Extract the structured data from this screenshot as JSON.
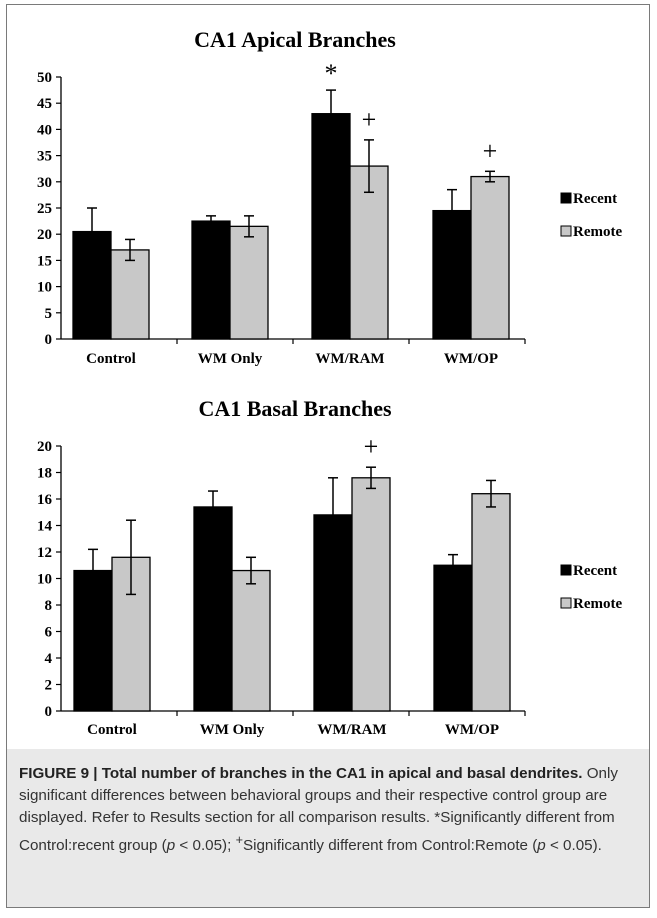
{
  "caption": {
    "title": "FIGURE 9 | Total number of branches in the CA1 in apical and basal dendrites.",
    "body_1": " Only significant differences between behavioral groups and their respective control group are displayed. Refer to Results section for all comparison results. *Significantly different from Control:recent group (",
    "p": "p",
    "body_2": " < 0.05); ",
    "plus": "+",
    "body_3": "Significantly different from Control:Remote (",
    "body_4": " < 0.05)."
  },
  "colors": {
    "recent": "#000000",
    "remote": "#c8c8c8",
    "axis": "#000000"
  },
  "chart_data": [
    {
      "type": "bar",
      "title": "CA1 Apical Branches",
      "categories": [
        "Control",
        "WM Only",
        "WM/RAM",
        "WM/OP"
      ],
      "series": [
        {
          "name": "Recent",
          "values": [
            20.5,
            22.5,
            43,
            24.5
          ],
          "errors": [
            4.5,
            1,
            4.5,
            4
          ]
        },
        {
          "name": "Remote",
          "values": [
            17,
            21.5,
            33,
            31
          ],
          "errors": [
            2,
            2,
            5,
            1
          ]
        }
      ],
      "ylim": [
        0,
        50
      ],
      "yticks": [
        "0",
        "5",
        "10",
        "15",
        "20",
        "25",
        "30",
        "35",
        "40",
        "45",
        "50"
      ],
      "annotations": [
        {
          "text": "*",
          "category": "WM/RAM",
          "series": "Recent"
        },
        {
          "text": "+",
          "category": "WM/RAM",
          "series": "Remote"
        },
        {
          "text": "+",
          "category": "WM/OP",
          "series": "Remote"
        }
      ],
      "legend": "right",
      "grid": false
    },
    {
      "type": "bar",
      "title": "CA1 Basal Branches",
      "categories": [
        "Control",
        "WM Only",
        "WM/RAM",
        "WM/OP"
      ],
      "series": [
        {
          "name": "Recent",
          "values": [
            10.6,
            15.4,
            14.8,
            11
          ],
          "errors": [
            1.6,
            1.2,
            2.8,
            0.8
          ]
        },
        {
          "name": "Remote",
          "values": [
            11.6,
            10.6,
            17.6,
            16.4
          ],
          "errors": [
            2.8,
            1,
            0.8,
            1
          ]
        }
      ],
      "ylim": [
        0,
        20
      ],
      "yticks": [
        "0",
        "2",
        "4",
        "6",
        "8",
        "10",
        "12",
        "14",
        "16",
        "18",
        "20"
      ],
      "annotations": [
        {
          "text": "+",
          "category": "WM/RAM",
          "series": "Remote"
        }
      ],
      "legend": "right",
      "grid": false
    }
  ]
}
